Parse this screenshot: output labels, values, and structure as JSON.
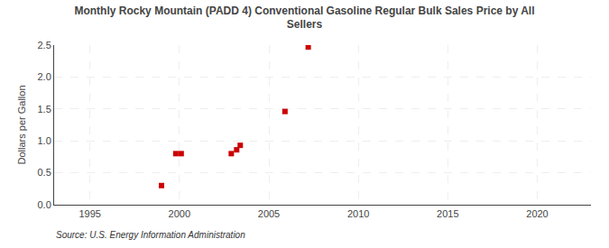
{
  "chart_data": {
    "type": "scatter",
    "title": "Monthly Rocky Mountain (PADD 4) Conventional Gasoline Regular Bulk Sales Price by All\nSellers",
    "ylabel": "Dollars per Gallon",
    "annotations": [
      "Source: U.S. Energy Information Administration"
    ],
    "x": [
      1999.0,
      1999.8,
      2000.1,
      2002.9,
      2003.2,
      2003.4,
      2005.9,
      2007.2
    ],
    "values": [
      0.3,
      0.8,
      0.8,
      0.8,
      0.86,
      0.93,
      1.46,
      2.47
    ],
    "color": "#cc0000",
    "marker": "square",
    "xlim": [
      1993,
      2023
    ],
    "ylim": [
      0.0,
      2.5
    ],
    "xticks": [
      1995,
      2000,
      2005,
      2010,
      2015,
      2020
    ],
    "yticks": [
      {
        "value": 0.0,
        "label": "0.0"
      },
      0.5,
      {
        "value": 1.0,
        "label": "1.0"
      },
      1.5,
      {
        "value": 2.0,
        "label": "2.0"
      },
      2.5
    ],
    "grid": true
  }
}
